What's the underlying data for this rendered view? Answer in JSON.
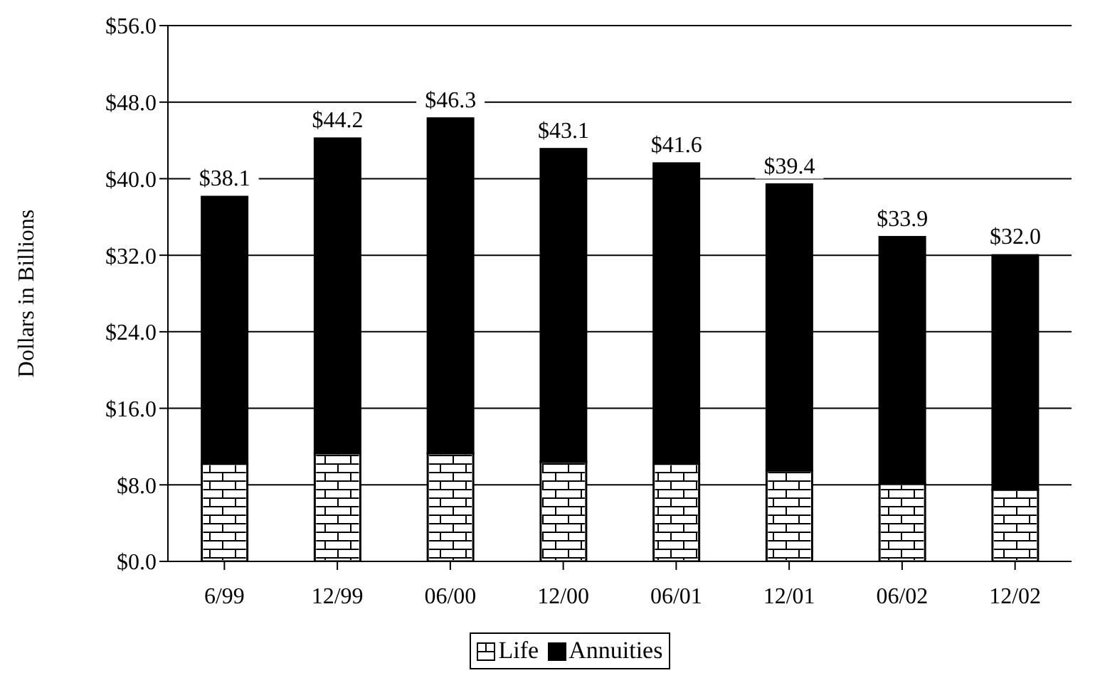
{
  "chart_data": {
    "type": "bar",
    "stacked": true,
    "ylabel": "Dollars in Billions",
    "categories": [
      "6/99",
      "12/99",
      "06/00",
      "12/00",
      "06/01",
      "12/01",
      "06/02",
      "12/02"
    ],
    "series": [
      {
        "name": "Life",
        "color": "#ffffff",
        "values": [
          10.2,
          11.3,
          11.3,
          10.4,
          10.2,
          9.5,
          8.1,
          7.5
        ]
      },
      {
        "name": "Annuities",
        "color": "#000000",
        "values": [
          27.9,
          32.9,
          35.0,
          32.7,
          31.4,
          29.9,
          25.8,
          24.5
        ]
      }
    ],
    "totals": [
      "$38.1",
      "$44.2",
      "$46.3",
      "$43.1",
      "$41.6",
      "$39.4",
      "$33.9",
      "$32.0"
    ],
    "ylim": [
      0,
      56
    ],
    "yticks": [
      {
        "value": 0,
        "label": "$0.0"
      },
      {
        "value": 8,
        "label": "$8.0"
      },
      {
        "value": 16,
        "label": "$16.0"
      },
      {
        "value": 24,
        "label": "$24.0"
      },
      {
        "value": 32,
        "label": "$32.0"
      },
      {
        "value": 40,
        "label": "$40.0"
      },
      {
        "value": 48,
        "label": "$48.0"
      },
      {
        "value": 56,
        "label": "$56.0"
      }
    ],
    "grid": "y",
    "legend": "bottom"
  }
}
